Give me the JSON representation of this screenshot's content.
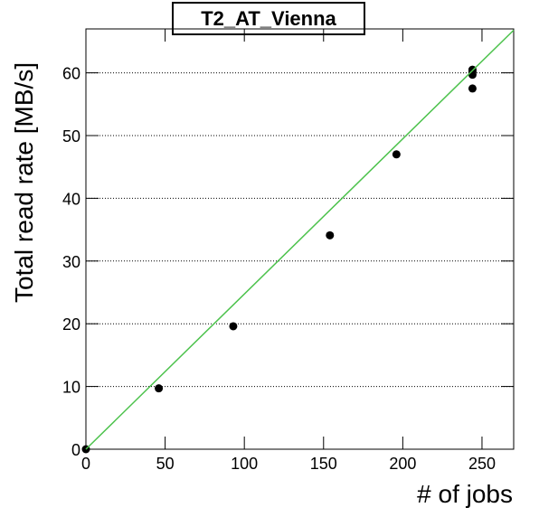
{
  "chart_data": {
    "type": "scatter",
    "title": "T2_AT_Vienna",
    "x_label": "# of jobs",
    "y_label": "Total read rate [MB/s]",
    "series": [
      {
        "color": "#000000",
        "mode": "markers",
        "x": [
          0,
          46,
          93,
          154,
          196,
          244,
          244,
          244,
          244
        ],
        "values": [
          0,
          9.7,
          19.6,
          34.1,
          47.0,
          57.5,
          59.7,
          60.2,
          60.5
        ]
      },
      {
        "color": "#4cc24c",
        "mode": "line",
        "x": [
          0,
          270
        ],
        "values": [
          0,
          66.8
        ]
      }
    ],
    "xlim": [
      0,
      270
    ],
    "ylim": [
      0,
      67
    ],
    "xticks": [
      0,
      50,
      100,
      150,
      200,
      250
    ],
    "yticks": [
      0,
      10,
      20,
      30,
      40,
      50,
      60
    ],
    "grid": "y"
  }
}
